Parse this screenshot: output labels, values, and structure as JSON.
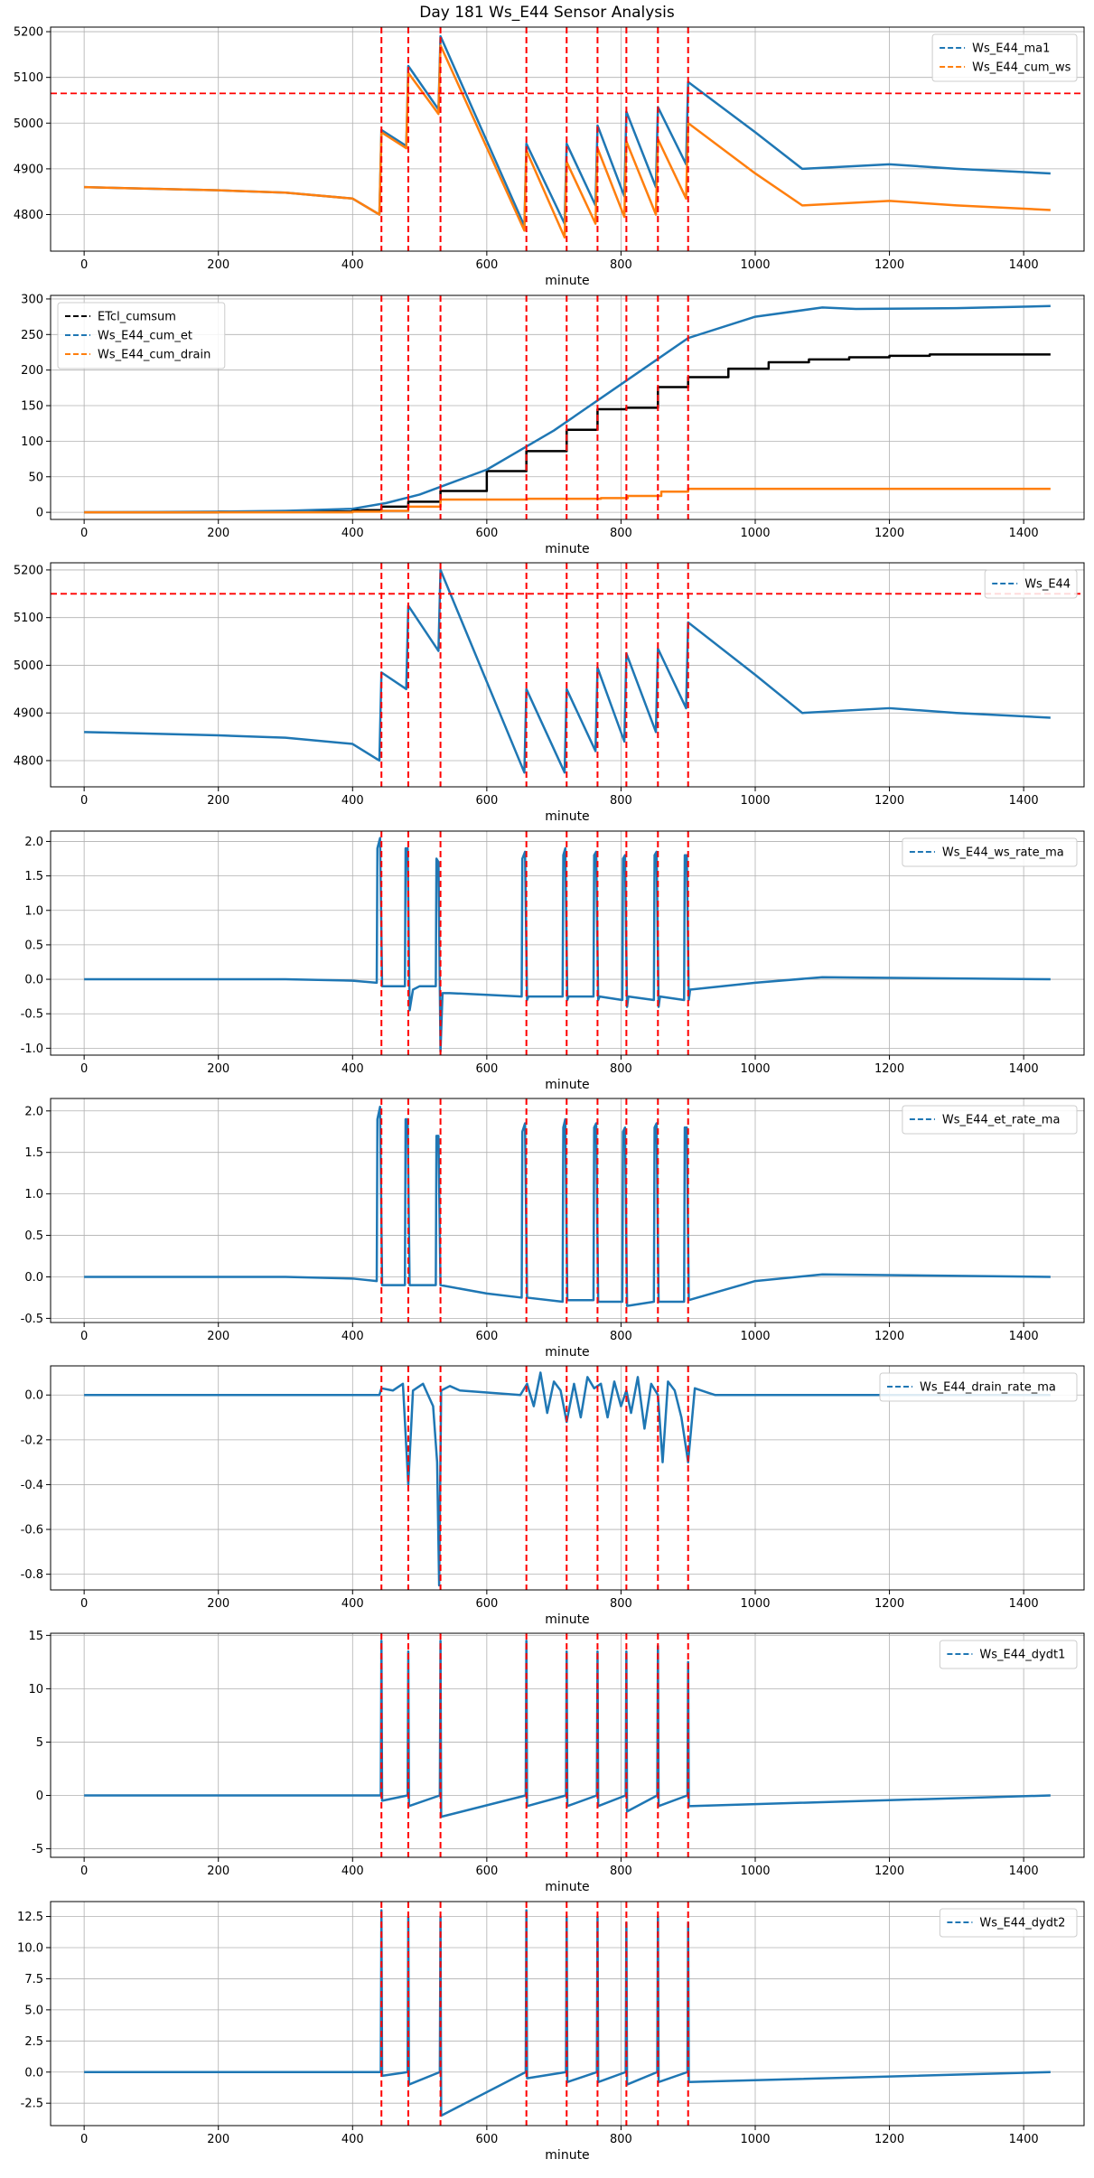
{
  "title": "Day 181 Ws_E44 Sensor Analysis",
  "colors": {
    "blue": "#1f77b4",
    "orange": "#ff7f0e",
    "black": "#000000",
    "red": "#ff0000",
    "grid": "#b0b0b0"
  },
  "chart_data": [
    {
      "type": "line",
      "xlabel": "minute",
      "xlim": [
        -50,
        1490
      ],
      "ylim": [
        4720,
        5210
      ],
      "xticks": [
        0,
        200,
        400,
        600,
        800,
        1000,
        1200,
        1400
      ],
      "yticks": [
        4800,
        4900,
        5000,
        5100,
        5200
      ],
      "legend": "top-right",
      "hlines": [
        5065
      ],
      "vlines": [
        443,
        483,
        531,
        659,
        719,
        765,
        808,
        855,
        900
      ],
      "series": [
        {
          "name": "Ws_E44_ma1",
          "color": "#1f77b4",
          "x": [
            0,
            200,
            300,
            400,
            440,
            443,
            480,
            483,
            528,
            531,
            656,
            659,
            716,
            719,
            762,
            765,
            805,
            808,
            852,
            855,
            897,
            900,
            1000,
            1070,
            1200,
            1300,
            1440
          ],
          "y": [
            4860,
            4853,
            4848,
            4835,
            4800,
            4985,
            4950,
            5125,
            5030,
            5190,
            4775,
            4955,
            4780,
            4955,
            4820,
            4995,
            4840,
            5025,
            4860,
            5035,
            4910,
            5090,
            4980,
            4900,
            4910,
            4900,
            4890
          ]
        },
        {
          "name": "Ws_E44_cum_ws",
          "color": "#ff7f0e",
          "x": [
            0,
            200,
            300,
            400,
            440,
            443,
            480,
            483,
            528,
            531,
            656,
            659,
            716,
            719,
            762,
            765,
            805,
            808,
            852,
            855,
            897,
            900,
            1000,
            1070,
            1200,
            1300,
            1440
          ],
          "y": [
            4860,
            4853,
            4848,
            4835,
            4800,
            4980,
            4945,
            5110,
            5020,
            5170,
            4765,
            4940,
            4750,
            4915,
            4780,
            4945,
            4795,
            4960,
            4800,
            4965,
            4835,
            5000,
            4890,
            4820,
            4830,
            4820,
            4810
          ]
        }
      ]
    },
    {
      "type": "line",
      "xlabel": "minute",
      "xlim": [
        -50,
        1490
      ],
      "ylim": [
        -10,
        305
      ],
      "xticks": [
        0,
        200,
        400,
        600,
        800,
        1000,
        1200,
        1400
      ],
      "yticks": [
        0,
        50,
        100,
        150,
        200,
        250,
        300
      ],
      "legend": "top-left",
      "hlines": [],
      "vlines": [
        443,
        483,
        531,
        659,
        719,
        765,
        808,
        855,
        900
      ],
      "series": [
        {
          "name": "ETcl_cumsum",
          "color": "#000000",
          "step": true,
          "x": [
            0,
            200,
            400,
            443,
            483,
            531,
            600,
            659,
            719,
            765,
            808,
            855,
            900,
            960,
            1020,
            1080,
            1140,
            1200,
            1260,
            1440
          ],
          "y": [
            0,
            1,
            3,
            8,
            15,
            30,
            58,
            86,
            116,
            145,
            147,
            176,
            190,
            202,
            211,
            215,
            218,
            220,
            222,
            222
          ]
        },
        {
          "name": "Ws_E44_cum_et",
          "color": "#1f77b4",
          "x": [
            0,
            200,
            300,
            400,
            450,
            500,
            600,
            700,
            800,
            900,
            1000,
            1100,
            1150,
            1300,
            1440
          ],
          "y": [
            0,
            1,
            2,
            5,
            13,
            25,
            60,
            115,
            180,
            245,
            275,
            288,
            286,
            287,
            290
          ]
        },
        {
          "name": "Ws_E44_cum_drain",
          "color": "#ff7f0e",
          "step": true,
          "x": [
            0,
            400,
            443,
            483,
            531,
            660,
            770,
            810,
            860,
            900,
            1440
          ],
          "y": [
            0,
            1,
            2,
            8,
            18,
            19,
            20,
            23,
            29,
            33,
            33
          ]
        }
      ]
    },
    {
      "type": "line",
      "xlabel": "minute",
      "xlim": [
        -50,
        1490
      ],
      "ylim": [
        4745,
        5215
      ],
      "xticks": [
        0,
        200,
        400,
        600,
        800,
        1000,
        1200,
        1400
      ],
      "yticks": [
        4800,
        4900,
        5000,
        5100,
        5200
      ],
      "legend": "top-right",
      "hlines": [
        5150
      ],
      "vlines": [
        443,
        483,
        531,
        659,
        719,
        765,
        808,
        855,
        900
      ],
      "series": [
        {
          "name": "Ws_E44",
          "color": "#1f77b4",
          "x": [
            0,
            200,
            300,
            400,
            440,
            443,
            480,
            483,
            528,
            531,
            656,
            659,
            716,
            719,
            762,
            765,
            805,
            808,
            852,
            855,
            897,
            900,
            1000,
            1070,
            1200,
            1300,
            1440
          ],
          "y": [
            4860,
            4853,
            4848,
            4835,
            4800,
            4985,
            4950,
            5125,
            5030,
            5200,
            4775,
            4950,
            4775,
            4950,
            4820,
            4995,
            4840,
            5025,
            4860,
            5035,
            4910,
            5090,
            4980,
            4900,
            4910,
            4900,
            4890
          ]
        }
      ]
    },
    {
      "type": "line",
      "xlabel": "minute",
      "xlim": [
        -50,
        1490
      ],
      "ylim": [
        -1.1,
        2.15
      ],
      "xticks": [
        0,
        200,
        400,
        600,
        800,
        1000,
        1200,
        1400
      ],
      "yticks": [
        -1.0,
        -0.5,
        0.0,
        0.5,
        1.0,
        1.5,
        2.0
      ],
      "legend": "top-right",
      "hlines": [],
      "vlines": [
        443,
        483,
        531,
        659,
        719,
        765,
        808,
        855,
        900
      ],
      "series": [
        {
          "name": "Ws_E44_ws_rate_ma",
          "color": "#1f77b4",
          "x": [
            0,
            300,
            400,
            436,
            437,
            441,
            444,
            447,
            478,
            479,
            482,
            485,
            490,
            500,
            524,
            525,
            528,
            531,
            534,
            545,
            652,
            653,
            657,
            660,
            662,
            713,
            714,
            717,
            720,
            722,
            759,
            760,
            763,
            766,
            768,
            802,
            803,
            806,
            809,
            811,
            849,
            850,
            853,
            856,
            858,
            894,
            895,
            898,
            901,
            903,
            1000,
            1100,
            1440
          ],
          "y": [
            0,
            0,
            -0.02,
            -0.05,
            1.9,
            2.05,
            -0.1,
            -0.1,
            -0.1,
            1.9,
            1.9,
            -0.45,
            -0.15,
            -0.1,
            -0.1,
            1.75,
            1.7,
            -1.05,
            -0.2,
            -0.2,
            -0.25,
            1.75,
            1.85,
            -0.3,
            -0.25,
            -0.25,
            1.8,
            1.9,
            -0.3,
            -0.25,
            -0.25,
            1.8,
            1.85,
            -0.3,
            -0.25,
            -0.3,
            1.75,
            1.8,
            -0.4,
            -0.25,
            -0.3,
            1.8,
            1.85,
            -0.4,
            -0.25,
            -0.3,
            1.8,
            1.8,
            -0.3,
            -0.15,
            -0.05,
            0.03,
            0
          ]
        }
      ]
    },
    {
      "type": "line",
      "xlabel": "minute",
      "xlim": [
        -50,
        1490
      ],
      "ylim": [
        -0.55,
        2.15
      ],
      "xticks": [
        0,
        200,
        400,
        600,
        800,
        1000,
        1200,
        1400
      ],
      "yticks": [
        -0.5,
        0.0,
        0.5,
        1.0,
        1.5,
        2.0
      ],
      "legend": "top-right",
      "hlines": [],
      "vlines": [
        443,
        483,
        531,
        659,
        719,
        765,
        808,
        855,
        900
      ],
      "series": [
        {
          "name": "Ws_E44_et_rate_ma",
          "color": "#1f77b4",
          "x": [
            0,
            300,
            400,
            436,
            437,
            441,
            444,
            478,
            479,
            482,
            485,
            524,
            525,
            528,
            531,
            600,
            652,
            653,
            657,
            660,
            713,
            714,
            717,
            720,
            759,
            760,
            763,
            766,
            802,
            803,
            806,
            809,
            849,
            850,
            853,
            856,
            894,
            895,
            898,
            901,
            1000,
            1100,
            1440
          ],
          "y": [
            0,
            0,
            -0.02,
            -0.05,
            1.9,
            2.05,
            -0.1,
            -0.1,
            1.9,
            1.9,
            -0.1,
            -0.1,
            1.7,
            1.7,
            -0.1,
            -0.2,
            -0.25,
            1.75,
            1.85,
            -0.25,
            -0.3,
            1.8,
            1.9,
            -0.28,
            -0.28,
            1.8,
            1.85,
            -0.3,
            -0.3,
            1.75,
            1.8,
            -0.35,
            -0.3,
            1.8,
            1.85,
            -0.3,
            -0.3,
            1.8,
            1.8,
            -0.28,
            -0.05,
            0.03,
            0
          ]
        }
      ]
    },
    {
      "type": "line",
      "xlabel": "minute",
      "xlim": [
        -50,
        1490
      ],
      "ylim": [
        -0.87,
        0.13
      ],
      "xticks": [
        0,
        200,
        400,
        600,
        800,
        1000,
        1200,
        1400
      ],
      "yticks": [
        -0.8,
        -0.6,
        -0.4,
        -0.2,
        0.0
      ],
      "legend": "top-right",
      "hlines": [],
      "vlines": [
        443,
        483,
        531,
        659,
        719,
        765,
        808,
        855,
        900
      ],
      "series": [
        {
          "name": "Ws_E44_drain_rate_ma",
          "color": "#1f77b4",
          "x": [
            0,
            440,
            443,
            460,
            475,
            483,
            490,
            505,
            520,
            526,
            529,
            532,
            545,
            560,
            650,
            660,
            670,
            680,
            690,
            700,
            710,
            719,
            730,
            740,
            750,
            760,
            770,
            780,
            790,
            800,
            808,
            815,
            825,
            835,
            845,
            855,
            862,
            870,
            880,
            890,
            900,
            910,
            930,
            940,
            1440
          ],
          "y": [
            0,
            0,
            0.03,
            0.02,
            0.05,
            -0.4,
            0.02,
            0.05,
            -0.05,
            -0.3,
            -0.85,
            0.02,
            0.04,
            0.02,
            0.0,
            0.05,
            -0.05,
            0.1,
            -0.08,
            0.06,
            0.02,
            -0.12,
            0.05,
            -0.1,
            0.08,
            0.03,
            0.05,
            -0.1,
            0.06,
            -0.05,
            0.02,
            -0.08,
            0.08,
            -0.15,
            0.05,
            0.0,
            -0.3,
            0.06,
            0.02,
            -0.1,
            -0.3,
            0.03,
            0.01,
            0,
            0
          ]
        }
      ]
    },
    {
      "type": "line",
      "xlabel": "minute",
      "xlim": [
        -50,
        1490
      ],
      "ylim": [
        -5.8,
        15.2
      ],
      "xticks": [
        0,
        200,
        400,
        600,
        800,
        1000,
        1200,
        1400
      ],
      "yticks": [
        -5,
        0,
        5,
        10,
        15
      ],
      "legend": "top-right",
      "hlines": [],
      "vlines": [
        443,
        483,
        531,
        659,
        719,
        765,
        808,
        855,
        900
      ],
      "series": [
        {
          "name": "Ws_E44_dydt1",
          "color": "#1f77b4",
          "x": [
            0,
            442,
            443,
            444,
            482,
            483,
            484,
            530,
            531,
            532,
            658,
            659,
            660,
            718,
            719,
            720,
            764,
            765,
            766,
            807,
            808,
            809,
            854,
            855,
            856,
            899,
            900,
            901,
            1440
          ],
          "y": [
            0,
            0,
            14.5,
            -0.5,
            0,
            13.5,
            -1.0,
            0,
            14.5,
            -2.0,
            0,
            14.5,
            -1.0,
            0,
            13.5,
            -1.0,
            0,
            13.5,
            -1.0,
            0,
            13.5,
            -1.5,
            0,
            14.0,
            -1.0,
            0,
            12.5,
            -1.0,
            0
          ]
        }
      ]
    },
    {
      "type": "line",
      "xlabel": "minute",
      "xlim": [
        -50,
        1490
      ],
      "ylim": [
        -4.3,
        13.7
      ],
      "xticks": [
        0,
        200,
        400,
        600,
        800,
        1000,
        1200,
        1400
      ],
      "yticks": [
        -2.5,
        0.0,
        2.5,
        5.0,
        7.5,
        10.0,
        12.5
      ],
      "legend": "top-right",
      "hlines": [],
      "vlines": [
        443,
        483,
        531,
        659,
        719,
        765,
        808,
        855,
        900
      ],
      "series": [
        {
          "name": "Ws_E44_dydt2",
          "color": "#1f77b4",
          "x": [
            0,
            442,
            443,
            444,
            482,
            483,
            484,
            530,
            531,
            532,
            658,
            659,
            660,
            718,
            719,
            720,
            764,
            765,
            766,
            807,
            808,
            809,
            854,
            855,
            856,
            899,
            900,
            901,
            1440
          ],
          "y": [
            0,
            0,
            13.0,
            -0.3,
            0,
            12.5,
            -1.0,
            0,
            12.5,
            -3.5,
            0,
            13.0,
            -0.5,
            0,
            12.5,
            -0.8,
            0,
            12.5,
            -0.8,
            0,
            12.0,
            -1.0,
            0,
            12.5,
            -0.8,
            0,
            12.0,
            -0.8,
            0
          ]
        }
      ]
    }
  ]
}
